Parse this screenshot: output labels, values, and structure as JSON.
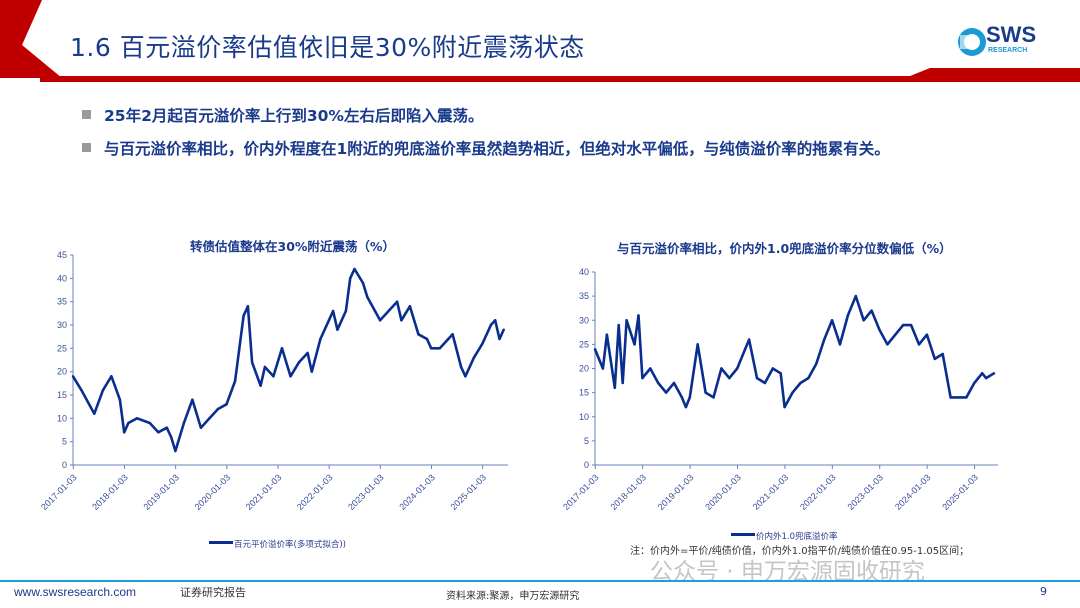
{
  "header": {
    "title": "1.6 百元溢价率估值依旧是30%附近震荡状态",
    "logo_text": "SWS",
    "logo_sub": "RESEARCH",
    "accent_color": "#c00000",
    "title_color": "#1a3a8c"
  },
  "bullets": [
    "25年2月起百元溢价率上行到30%左右后即陷入震荡。",
    "与百元溢价率相比，价内外程度在1附近的兜底溢价率虽然趋势相近，但绝对水平偏低，与纯债溢价率的拖累有关。"
  ],
  "chart_data": [
    {
      "type": "line",
      "title": "转债估值整体在30%附近震荡（%）",
      "xlabel": "",
      "ylabel": "",
      "ylim": [
        0,
        45
      ],
      "yticks": [
        "0",
        "5",
        "10",
        "15",
        "20",
        "25",
        "30",
        "35",
        "40",
        "45"
      ],
      "xticks": [
        "2017-01-03",
        "2018-01-03",
        "2019-01-03",
        "2020-01-03",
        "2021-01-03",
        "2022-01-03",
        "2023-01-03",
        "2024-01-03",
        "2025-01-03"
      ],
      "legend": "bottom",
      "grid": false,
      "color": "#0a2e8f",
      "series": [
        {
          "name": "百元平价溢价率(多项式拟合))",
          "x": [
            "2017-01",
            "2017-03",
            "2017-06",
            "2017-08",
            "2017-10",
            "2017-12",
            "2018-01",
            "2018-02",
            "2018-04",
            "2018-07",
            "2018-09",
            "2018-11",
            "2018-12",
            "2019-01",
            "2019-03",
            "2019-05",
            "2019-07",
            "2019-09",
            "2019-11",
            "2020-01",
            "2020-03",
            "2020-05",
            "2020-06",
            "2020-07",
            "2020-09",
            "2020-10",
            "2020-12",
            "2021-02",
            "2021-04",
            "2021-06",
            "2021-08",
            "2021-09",
            "2021-11",
            "2022-01",
            "2022-02",
            "2022-03",
            "2022-05",
            "2022-06",
            "2022-07",
            "2022-09",
            "2022-10",
            "2023-01",
            "2023-03",
            "2023-05",
            "2023-06",
            "2023-08",
            "2023-10",
            "2023-12",
            "2024-01",
            "2024-03",
            "2024-05",
            "2024-06",
            "2024-08",
            "2024-09",
            "2024-11",
            "2025-01",
            "2025-03",
            "2025-04",
            "2025-05",
            "2025-06"
          ],
          "values": [
            19,
            16,
            11,
            16,
            19,
            14,
            7,
            9,
            10,
            9,
            7,
            8,
            6,
            3,
            9,
            14,
            8,
            10,
            12,
            13,
            18,
            32,
            34,
            22,
            17,
            21,
            19,
            25,
            19,
            22,
            24,
            20,
            27,
            31,
            33,
            29,
            33,
            40,
            42,
            39,
            36,
            31,
            33,
            35,
            31,
            34,
            28,
            27,
            25,
            25,
            27,
            28,
            21,
            19,
            23,
            26,
            30,
            31,
            27,
            29
          ]
        }
      ]
    },
    {
      "type": "line",
      "title": "与百元溢价率相比，价内外1.0兜底溢价率分位数偏低（%）",
      "xlabel": "",
      "ylabel": "",
      "ylim": [
        0,
        40
      ],
      "yticks": [
        "0",
        "5",
        "10",
        "15",
        "20",
        "25",
        "30",
        "35",
        "40"
      ],
      "xticks": [
        "2017-01-03",
        "2018-01-03",
        "2019-01-03",
        "2020-01-03",
        "2021-01-03",
        "2022-01-03",
        "2023-01-03",
        "2024-01-03",
        "2025-01-03"
      ],
      "legend": "bottom",
      "grid": false,
      "color": "#0a2e8f",
      "series": [
        {
          "name": "价内外1.0兜底溢价率",
          "x": [
            "2017-01",
            "2017-03",
            "2017-04",
            "2017-06",
            "2017-07",
            "2017-08",
            "2017-09",
            "2017-11",
            "2017-12",
            "2018-01",
            "2018-03",
            "2018-05",
            "2018-07",
            "2018-09",
            "2018-11",
            "2018-12",
            "2019-01",
            "2019-03",
            "2019-05",
            "2019-07",
            "2019-09",
            "2019-11",
            "2020-01",
            "2020-03",
            "2020-04",
            "2020-06",
            "2020-08",
            "2020-10",
            "2020-12",
            "2021-01",
            "2021-03",
            "2021-05",
            "2021-07",
            "2021-09",
            "2021-11",
            "2022-01",
            "2022-03",
            "2022-05",
            "2022-07",
            "2022-09",
            "2022-11",
            "2023-01",
            "2023-03",
            "2023-05",
            "2023-07",
            "2023-09",
            "2023-11",
            "2024-01",
            "2024-03",
            "2024-05",
            "2024-07",
            "2024-09",
            "2024-11",
            "2025-01",
            "2025-03",
            "2025-04",
            "2025-06"
          ],
          "values": [
            24,
            20,
            27,
            16,
            29,
            17,
            30,
            25,
            31,
            18,
            20,
            17,
            15,
            17,
            14,
            12,
            14,
            25,
            15,
            14,
            20,
            18,
            20,
            24,
            26,
            18,
            17,
            20,
            19,
            12,
            15,
            17,
            18,
            21,
            26,
            30,
            25,
            31,
            35,
            30,
            32,
            28,
            25,
            27,
            29,
            29,
            25,
            27,
            22,
            23,
            14,
            14,
            14,
            17,
            19,
            18,
            19
          ]
        }
      ]
    }
  ],
  "note": "注：价内外=平价/纯债价值，价内外1.0指平价/纯债价值在0.95-1.05区间；",
  "watermark": "公众号 · 申万宏源固收研究",
  "footer": {
    "url": "www.swsresearch.com",
    "report_label": "证券研究报告",
    "source": "资料来源:聚源，申万宏源研究",
    "page": "9"
  }
}
